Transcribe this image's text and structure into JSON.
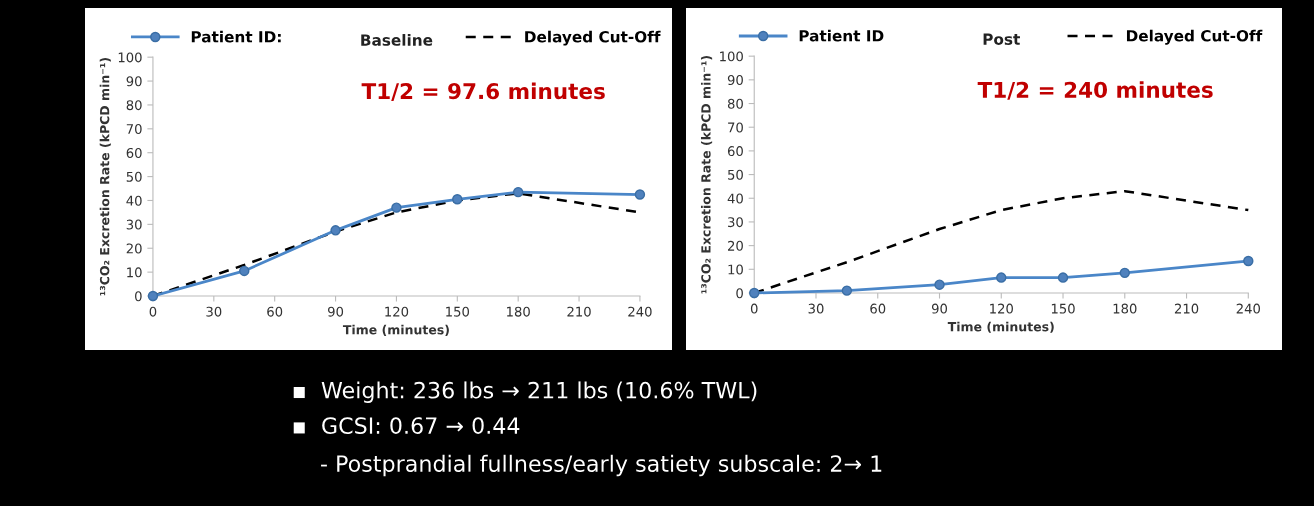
{
  "chart_data": [
    {
      "type": "line",
      "subtitle": "Baseline",
      "xlabel": "Time (minutes)",
      "ylabel": "¹³CO₂ Excretion Rate (kPCD min⁻¹)",
      "xlim": [
        0,
        240
      ],
      "xticks": [
        0,
        30,
        60,
        90,
        120,
        150,
        180,
        210,
        240
      ],
      "ylim": [
        0,
        100
      ],
      "yticks": [
        0,
        10,
        20,
        30,
        40,
        50,
        60,
        70,
        80,
        90,
        100
      ],
      "grid": false,
      "legend": "top",
      "annotations": [
        "T1/2 = 97.6 minutes"
      ],
      "series": [
        {
          "name": "Patient ID:",
          "color": "#4a86c8",
          "marker": "circle",
          "line_style": "solid",
          "x": [
            0,
            45,
            90,
            120,
            150,
            180,
            240
          ],
          "values": [
            0,
            10.5,
            27.5,
            37,
            40.5,
            43.5,
            42.5
          ]
        },
        {
          "name": "Delayed Cut-Off",
          "color": "#000000",
          "marker": "none",
          "line_style": "dashed",
          "x": [
            0,
            45,
            90,
            120,
            150,
            180,
            240
          ],
          "values": [
            0,
            13,
            27,
            35,
            40,
            43,
            35
          ]
        }
      ]
    },
    {
      "type": "line",
      "subtitle": "Post",
      "xlabel": "Time (minutes)",
      "ylabel": "¹³CO₂ Excretion Rate (kPCD min⁻¹)",
      "xlim": [
        0,
        240
      ],
      "xticks": [
        0,
        30,
        60,
        90,
        120,
        150,
        180,
        210,
        240
      ],
      "ylim": [
        0,
        100
      ],
      "yticks": [
        0,
        10,
        20,
        30,
        40,
        50,
        60,
        70,
        80,
        90,
        100
      ],
      "grid": false,
      "legend": "top",
      "annotations": [
        "T1/2 = 240 minutes"
      ],
      "series": [
        {
          "name": "Patient ID",
          "color": "#4a86c8",
          "marker": "circle",
          "line_style": "solid",
          "x": [
            0,
            45,
            90,
            120,
            150,
            180,
            240
          ],
          "values": [
            0,
            1,
            3.5,
            6.5,
            6.5,
            8.5,
            13.5
          ]
        },
        {
          "name": "Delayed Cut-Off",
          "color": "#000000",
          "marker": "none",
          "line_style": "dashed",
          "x": [
            0,
            45,
            90,
            120,
            150,
            180,
            240
          ],
          "values": [
            0,
            13,
            27,
            35,
            40,
            43,
            35
          ]
        }
      ]
    },
    {
      "type": "other",
      "annotations": [
        "▪  Weight: 236 lbs → 211 lbs (10.6% TWL)",
        "▪  GCSI: 0.67 → 0.44",
        "    - Postprandial fullness/early satiety subscale: 2→ 1"
      ]
    }
  ]
}
